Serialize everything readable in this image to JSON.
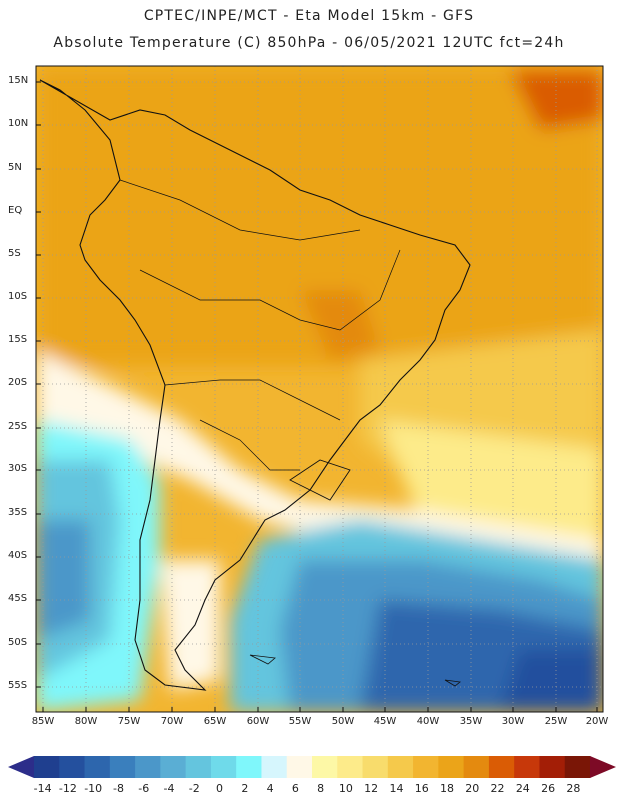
{
  "header": {
    "line1": "CPTEC/INPE/MCT -  Eta Model 15km - GFS",
    "line2": "Absolute Temperature (C) 850hPa - 06/05/2021 12UTC fct=24h"
  },
  "map": {
    "lat_labels": [
      "15N",
      "10N",
      "5N",
      "EQ",
      "5S",
      "10S",
      "15S",
      "20S",
      "25S",
      "30S",
      "35S",
      "40S",
      "45S",
      "50S",
      "55S"
    ],
    "lon_labels": [
      "85W",
      "80W",
      "75W",
      "70W",
      "65W",
      "60W",
      "55W",
      "50W",
      "45W",
      "40W",
      "35W",
      "30W",
      "25W",
      "20W"
    ]
  },
  "colorbar": {
    "labels": [
      "-14",
      "-12",
      "-10",
      "-8",
      "-6",
      "-4",
      "-2",
      "0",
      "2",
      "4",
      "6",
      "8",
      "10",
      "12",
      "14",
      "16",
      "18",
      "20",
      "22",
      "24",
      "26",
      "28"
    ],
    "colors": [
      "#1f3f8f",
      "#24509e",
      "#2d66ad",
      "#3a7fbd",
      "#4b97c9",
      "#5aaed4",
      "#64c5de",
      "#6fdaea",
      "#7ff7fb",
      "#d6f6fd",
      "#fff8e7",
      "#fdf8a6",
      "#fdeb8a",
      "#f8dc6c",
      "#f5c94b",
      "#f2b530",
      "#eba419",
      "#e48a0f",
      "#da5c05",
      "#c7380a",
      "#a31e06",
      "#7a1606"
    ],
    "left_cap": "#2c2d8a",
    "right_cap": "#7d0a26"
  }
}
